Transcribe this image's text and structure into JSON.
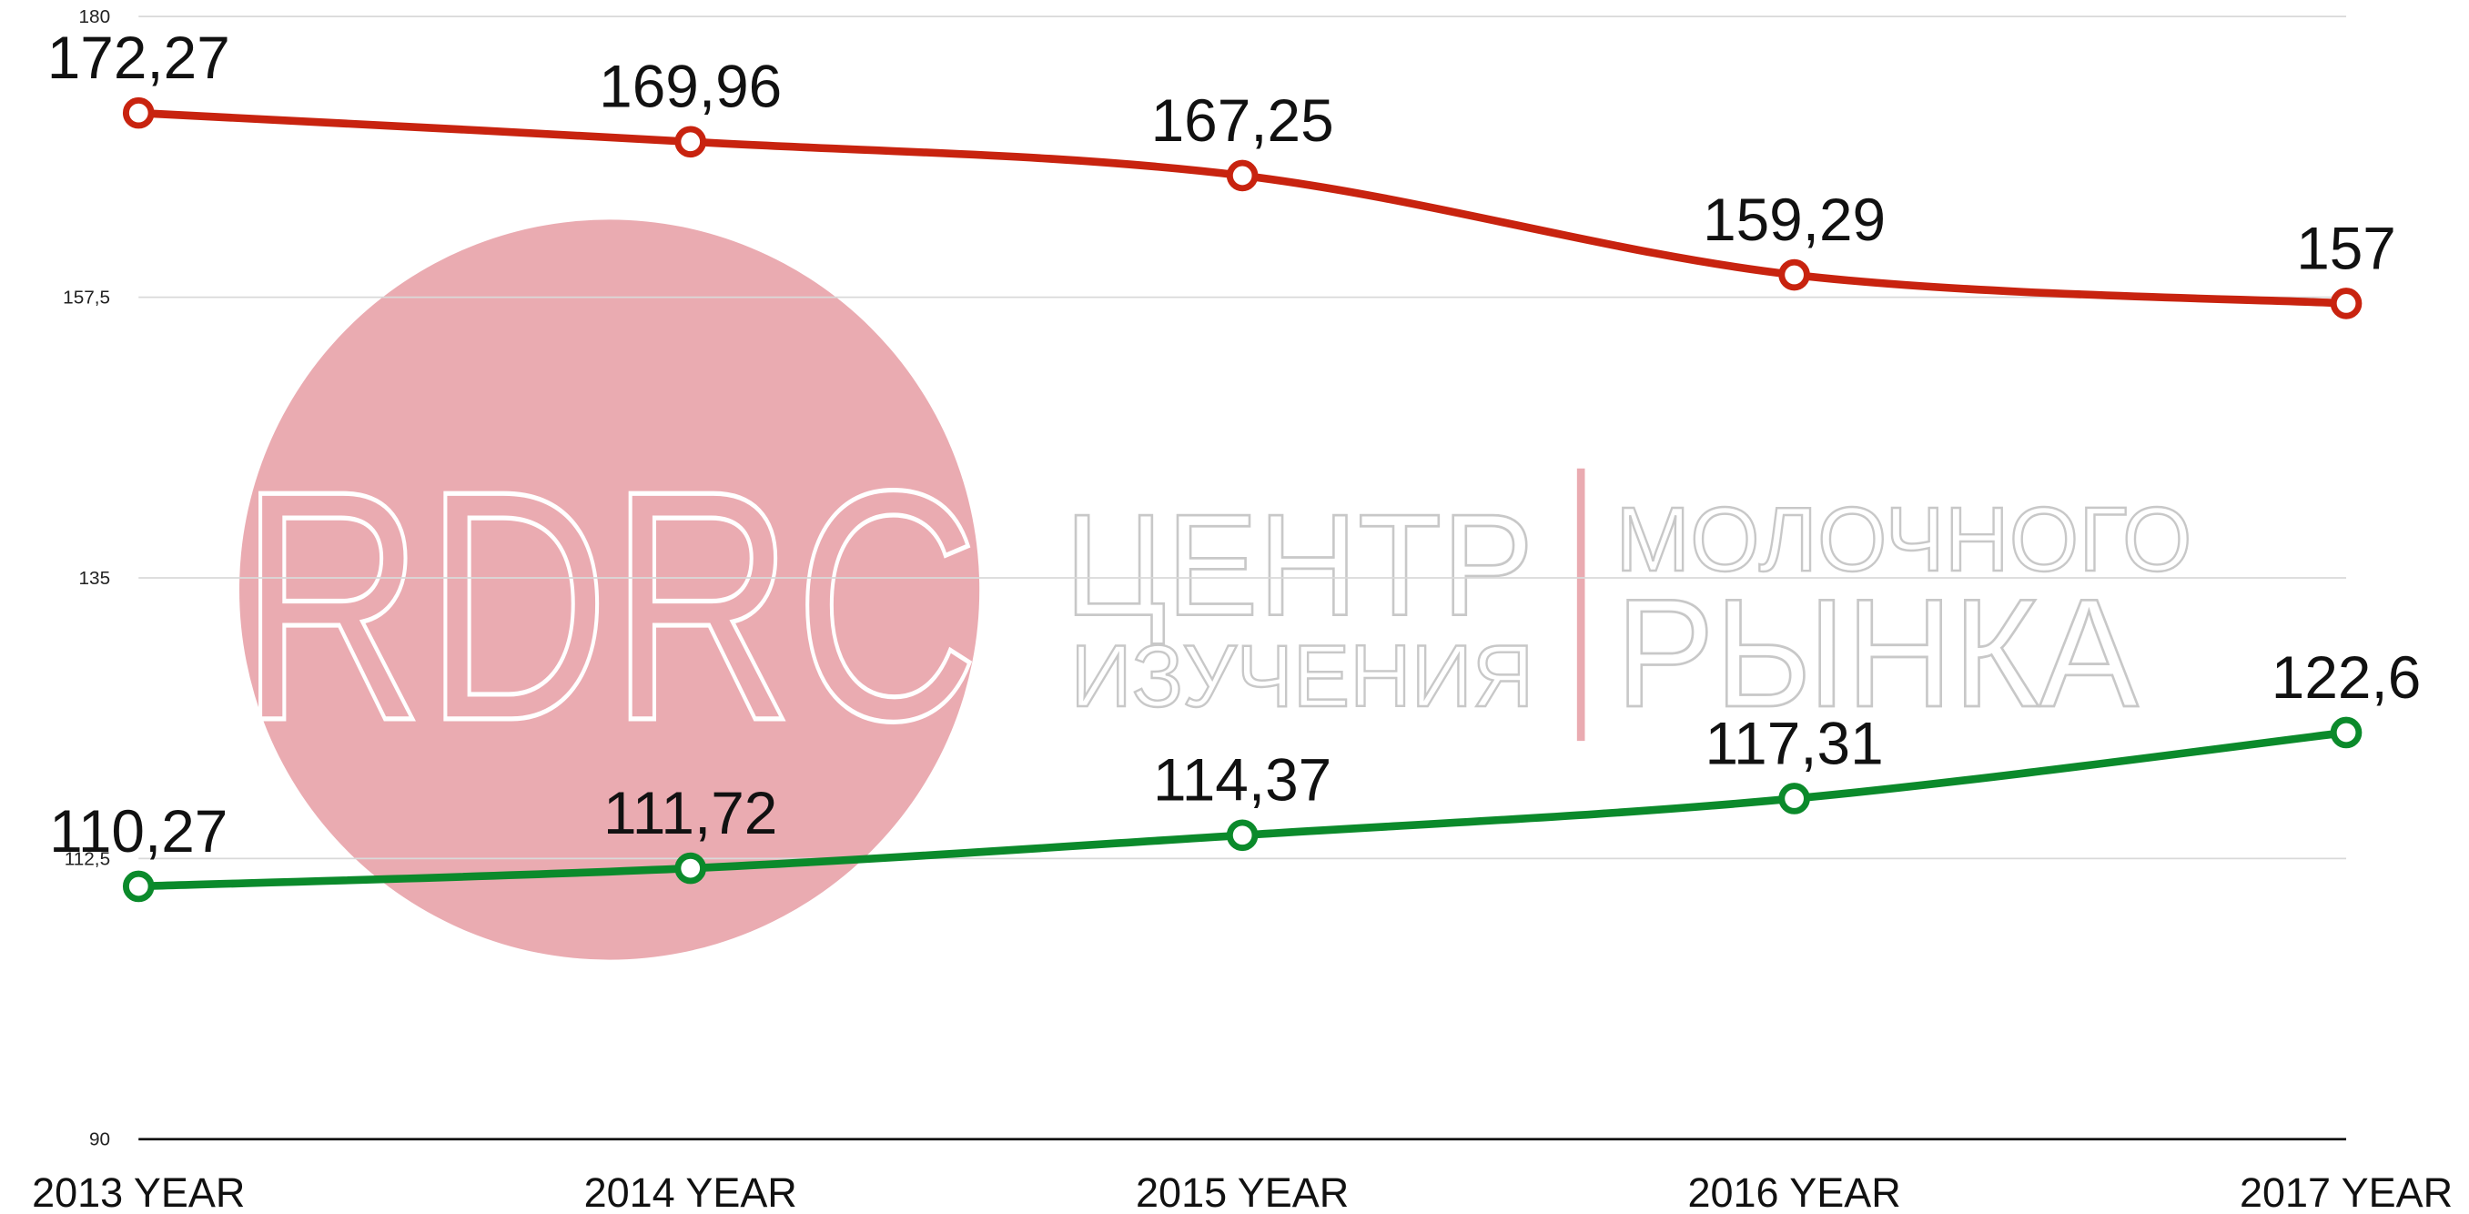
{
  "chart_data": {
    "type": "line",
    "categories": [
      "2013 YEAR",
      "2014 YEAR",
      "2015 YEAR",
      "2016 YEAR",
      "2017 YEAR"
    ],
    "series": [
      {
        "color": "#c8230f",
        "values": [
          172.27,
          169.96,
          167.25,
          159.29,
          157
        ],
        "value_labels": [
          "172,27",
          "169,96",
          "167,25",
          "159,29",
          "157"
        ]
      },
      {
        "color": "#0b8a2b",
        "values": [
          110.27,
          111.72,
          114.37,
          117.31,
          122.6
        ],
        "value_labels": [
          "110,27",
          "111,72",
          "114,37",
          "117,31",
          "122,6"
        ]
      }
    ],
    "ylim": [
      90,
      180
    ],
    "yticks": [
      90,
      {
        "value": 112.5,
        "label": "112,5"
      },
      135,
      {
        "value": 157.5,
        "label": "157,5"
      },
      180
    ],
    "grid": true
  },
  "watermark": {
    "logo": "RDRC",
    "line1": "ЦЕНТР",
    "line2": "ИЗУЧЕНИЯ",
    "line3": "МОЛОЧНОГО",
    "line4": "РЫНКА"
  }
}
